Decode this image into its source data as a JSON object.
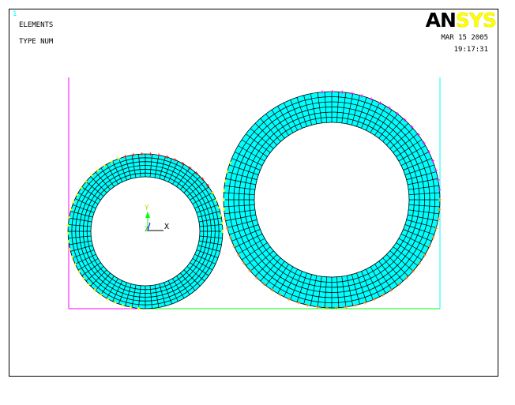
{
  "window": {
    "number": "1",
    "title": "ELEMENTS",
    "subtitle": "TYPE NUM",
    "date": "MAR 15 2005",
    "time": "19:17:31"
  },
  "logo": {
    "part1": "AN",
    "part2": "SYS"
  },
  "triad": {
    "x_label": "X",
    "y_label": "Y",
    "z_label": "Z"
  },
  "colors": {
    "mesh_fill": "#00ffff",
    "mesh_lines": "#000000",
    "frame_left": "#ff00ff",
    "frame_right": "#00ffff",
    "frame_bottom": "#00ff00",
    "constraint_yellow": "#ffff00",
    "constraint_red": "#ff0000",
    "constraint_magenta": "#ff00ff",
    "constraint_orange": "#ff8000"
  },
  "model": {
    "small_ring": {
      "radial_divisions": 6,
      "circumferential_divisions": 72
    },
    "large_ring": {
      "radial_divisions": 6,
      "circumferential_divisions": 96
    }
  }
}
